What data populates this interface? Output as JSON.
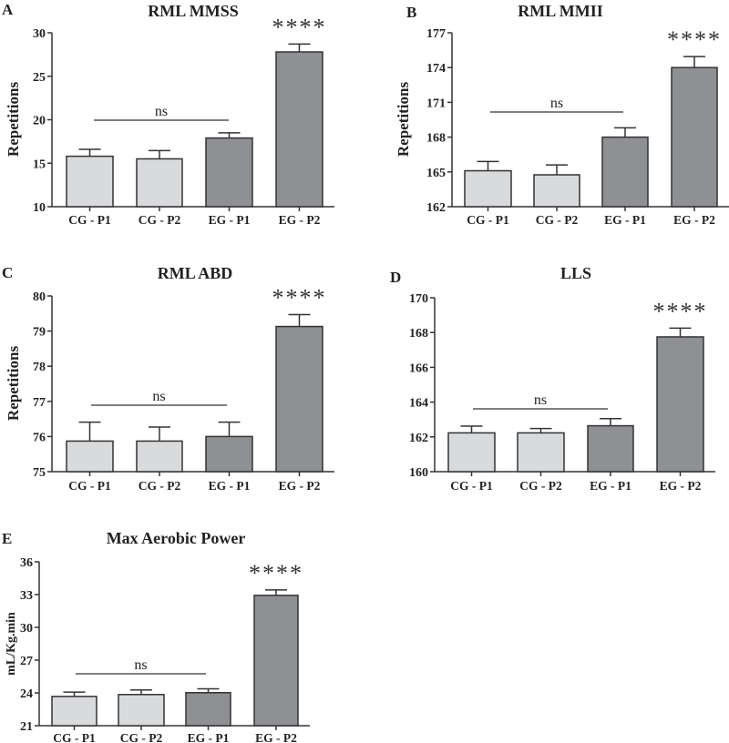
{
  "chart_data": [
    {
      "panel": "A",
      "type": "bar",
      "title": "RML MMSS",
      "ylabel": "Repetitions",
      "xlabel": "",
      "categories": [
        "CG - P1",
        "CG - P2",
        "EG - P1",
        "EG - P2"
      ],
      "values": [
        15.8,
        15.5,
        17.9,
        27.8
      ],
      "error_upper": [
        16.6,
        16.45,
        18.5,
        28.7
      ],
      "ylim": [
        10,
        30
      ],
      "yticks": [
        10,
        15,
        20,
        25,
        30
      ],
      "annotations": {
        "ns_label": "ns",
        "ns_span": [
          "CG - P1",
          "EG - P1"
        ],
        "significance": "****",
        "significance_on": "EG - P2"
      }
    },
    {
      "panel": "B",
      "type": "bar",
      "title": "RML MMII",
      "ylabel": "Repetitions",
      "xlabel": "",
      "categories": [
        "CG - P1",
        "CG - P2",
        "EG - P1",
        "EG - P2"
      ],
      "values": [
        165.1,
        164.75,
        168.0,
        174.0
      ],
      "error_upper": [
        165.9,
        165.6,
        168.8,
        174.95
      ],
      "ylim": [
        162,
        177
      ],
      "yticks": [
        162,
        165,
        168,
        171,
        174,
        177
      ],
      "annotations": {
        "ns_label": "ns",
        "ns_span": [
          "CG - P1",
          "EG - P1"
        ],
        "significance": "****",
        "significance_on": "EG - P2"
      }
    },
    {
      "panel": "C",
      "type": "bar",
      "title": "RML ABD",
      "ylabel": "Repetitions",
      "xlabel": "",
      "categories": [
        "CG - P1",
        "CG - P2",
        "EG - P1",
        "EG - P2"
      ],
      "values": [
        75.87,
        75.87,
        76.0,
        79.13
      ],
      "error_upper": [
        76.41,
        76.27,
        76.41,
        79.47
      ],
      "ylim": [
        75,
        80
      ],
      "yticks": [
        75,
        76,
        77,
        78,
        79,
        80
      ],
      "annotations": {
        "ns_label": "ns",
        "ns_span": [
          "CG - P1",
          "EG - P1"
        ],
        "significance": "****",
        "significance_on": "EG - P2"
      }
    },
    {
      "panel": "D",
      "type": "bar",
      "title": "LLS",
      "ylabel": "",
      "xlabel": "",
      "categories": [
        "CG - P1",
        "CG - P2",
        "EG - P1",
        "EG - P2"
      ],
      "values": [
        162.23,
        162.23,
        162.64,
        167.75
      ],
      "error_upper": [
        162.62,
        162.48,
        163.05,
        168.25
      ],
      "ylim": [
        160,
        170
      ],
      "yticks": [
        160,
        162,
        164,
        166,
        168,
        170
      ],
      "annotations": {
        "ns_label": "ns",
        "ns_span": [
          "CG - P1",
          "EG - P1"
        ],
        "significance": "****",
        "significance_on": "EG - P2"
      }
    },
    {
      "panel": "E",
      "type": "bar",
      "title": "Max Aerobic Power",
      "ylabel": "mL/Kg.min",
      "xlabel": "",
      "categories": [
        "CG - P1",
        "CG - P2",
        "EG - P1",
        "EG - P2"
      ],
      "values": [
        23.68,
        23.85,
        24.02,
        32.93
      ],
      "error_upper": [
        24.07,
        24.27,
        24.38,
        33.43
      ],
      "ylim": [
        21,
        36
      ],
      "yticks": [
        21,
        24,
        27,
        30,
        33,
        36
      ],
      "annotations": {
        "ns_label": "ns",
        "ns_span": [
          "CG - P1",
          "EG - P1"
        ],
        "significance": "****",
        "significance_on": "EG - P2"
      }
    }
  ],
  "colors": {
    "control_bar": "#d9dadc",
    "experimental_bar": "#8e9093",
    "axis": "#333333"
  },
  "bar_groups": [
    "control",
    "control",
    "experimental",
    "experimental"
  ]
}
